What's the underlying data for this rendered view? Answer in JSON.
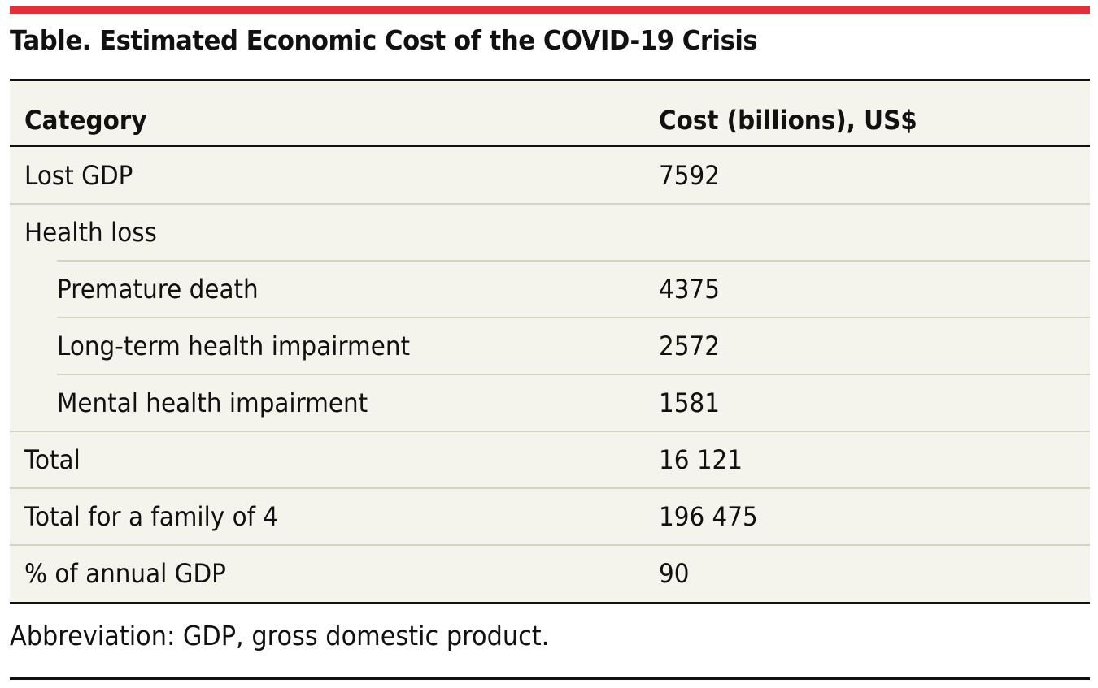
{
  "title": "Table. Estimated Economic Cost of the COVID-19 Crisis",
  "table": {
    "headers": [
      "Category",
      "Cost (billions), US$"
    ],
    "rows": [
      {
        "category": "Lost GDP",
        "cost": "7592",
        "indent": false
      },
      {
        "category": "Health loss",
        "cost": "",
        "indent": false
      },
      {
        "category": "Premature death",
        "cost": "4375",
        "indent": true
      },
      {
        "category": "Long-term health impairment",
        "cost": "2572",
        "indent": true
      },
      {
        "category": "Mental health impairment",
        "cost": "1581",
        "indent": true
      },
      {
        "category": "Total",
        "cost": "16 121",
        "indent": false
      },
      {
        "category": "Total for a family of 4",
        "cost": "196 475",
        "indent": false
      },
      {
        "category": "% of annual GDP",
        "cost": "90",
        "indent": false
      }
    ]
  },
  "footnote": "Abbreviation: GDP, gross domestic product.",
  "colors": {
    "accent_bar": "#e0313a",
    "table_background": "#f4f3ec",
    "row_divider": "#d6d2c3"
  }
}
